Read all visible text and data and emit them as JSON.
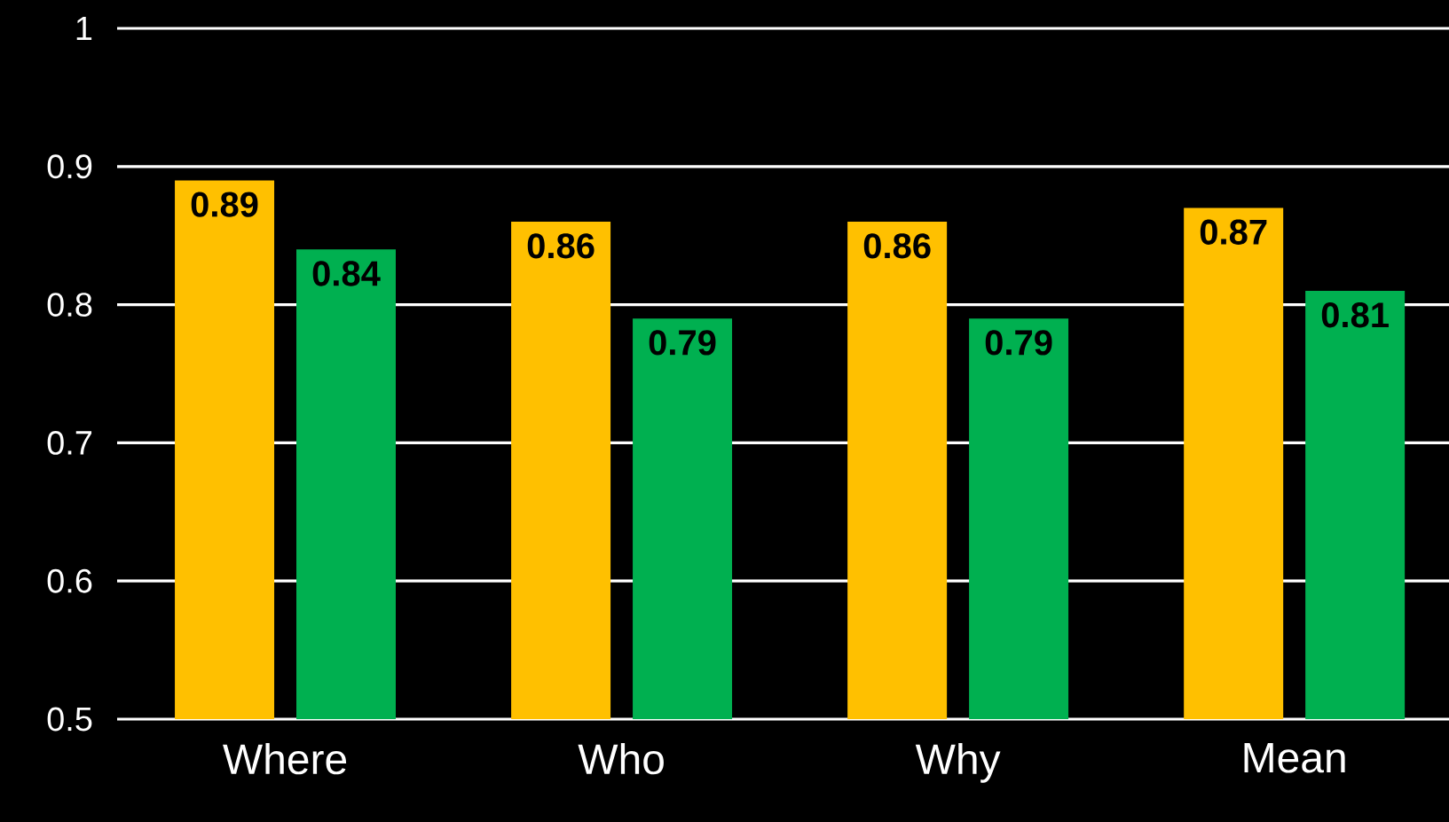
{
  "chart_data": {
    "type": "bar",
    "categories": [
      "Where",
      "Who",
      "Why",
      "Mean"
    ],
    "series": [
      {
        "color": "#ffc000",
        "values": [
          0.89,
          0.86,
          0.86,
          0.87
        ]
      },
      {
        "color": "#00b050",
        "values": [
          0.84,
          0.79,
          0.79,
          0.81
        ]
      }
    ],
    "ylim": [
      0.5,
      1
    ],
    "yticks": [
      0.5,
      0.6,
      0.7,
      0.8,
      0.9,
      1
    ],
    "grid": "y",
    "data_labels": true
  }
}
